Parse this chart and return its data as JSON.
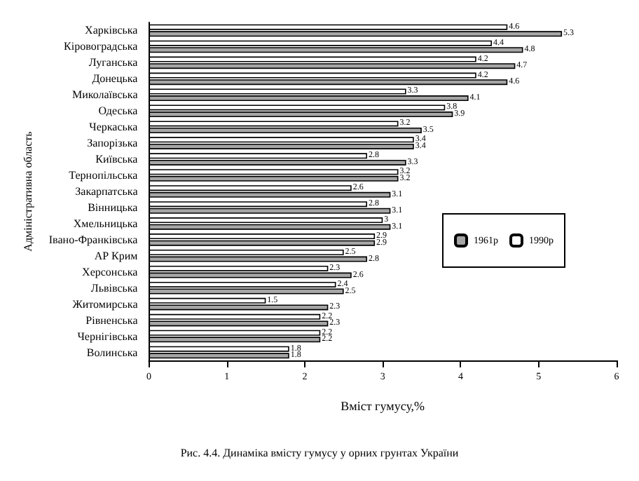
{
  "chart_data": {
    "type": "bar",
    "orientation": "horizontal",
    "xlabel": "Вміст гумусу,%",
    "ylabel": "Адміністративна область",
    "annotations": [
      "Рис. 4.4. Динаміка вмісту гумусу у орних грунтах України"
    ],
    "categories": [
      "Харківська",
      "Кіровоградська",
      "Луганська",
      "Донецька",
      "Миколаївська",
      "Одеська",
      "Черкаська",
      "Запорізька",
      "Київська",
      "Тернопільська",
      "Закарпатська",
      "Вінницька",
      "Хмельницька",
      "Івано-Франківська",
      "АР Крим",
      "Херсонська",
      "Львівська",
      "Житомирська",
      "Рівненська",
      "Чернігівська",
      "Волинська"
    ],
    "series": [
      {
        "name": "1990р",
        "color": "#ffffff",
        "values": [
          4.6,
          4.4,
          4.2,
          4.2,
          3.3,
          3.8,
          3.2,
          3.4,
          2.8,
          3.2,
          2.6,
          2.8,
          3.0,
          2.9,
          2.5,
          2.3,
          2.4,
          1.5,
          2.2,
          2.2,
          1.8
        ]
      },
      {
        "name": "1961р",
        "color": "#a6a6a6",
        "values": [
          5.3,
          4.8,
          4.7,
          4.6,
          4.1,
          3.9,
          3.5,
          3.4,
          3.3,
          3.2,
          3.1,
          3.1,
          3.1,
          2.9,
          2.8,
          2.6,
          2.5,
          2.3,
          2.3,
          2.2,
          1.8
        ]
      }
    ],
    "xlim": [
      0,
      6
    ],
    "xticks": [
      0,
      1,
      2,
      3,
      4,
      5,
      6
    ],
    "data_labels": true,
    "grid": false,
    "legend": "right"
  }
}
